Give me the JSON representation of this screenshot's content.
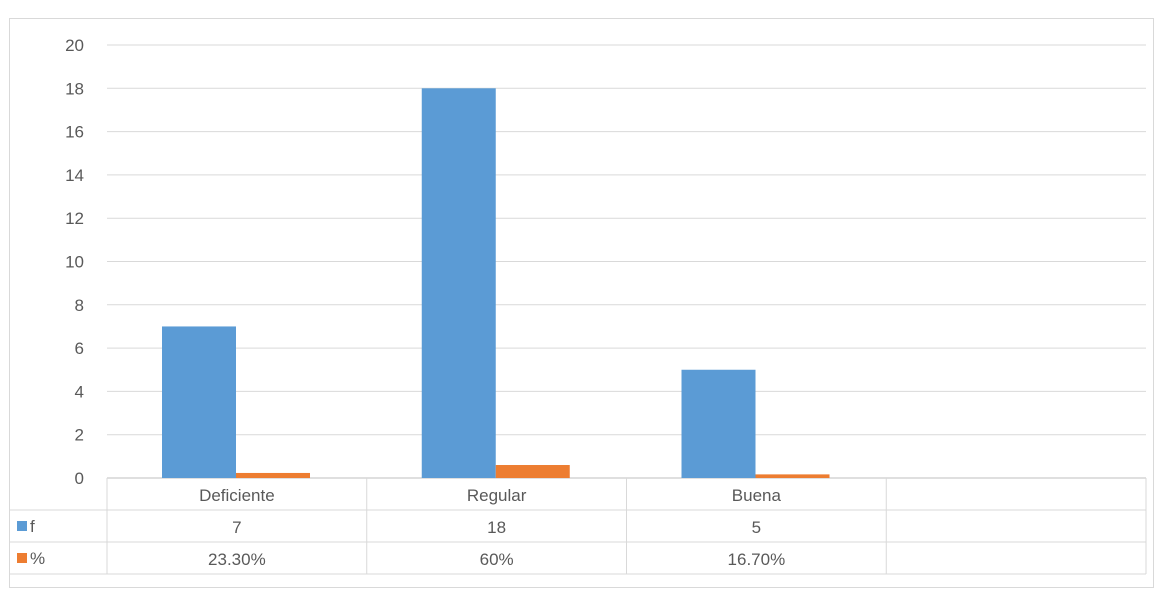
{
  "chart_data": {
    "type": "bar",
    "title": "",
    "xlabel": "",
    "ylabel": "",
    "ylim": [
      0,
      20
    ],
    "ytick_step": 2,
    "grid": true,
    "legend": "data-table",
    "categories": [
      "Deficiente",
      "Regular",
      "Buena"
    ],
    "series": [
      {
        "name": "f",
        "color": "#5b9bd5",
        "values": [
          7,
          18,
          5
        ],
        "table_labels": [
          "7",
          "18",
          "5"
        ]
      },
      {
        "name": "%",
        "color": "#ed7d31",
        "values": [
          0.233,
          0.6,
          0.167
        ],
        "table_labels": [
          "23.30%",
          "60%",
          "16.70%"
        ]
      }
    ]
  }
}
